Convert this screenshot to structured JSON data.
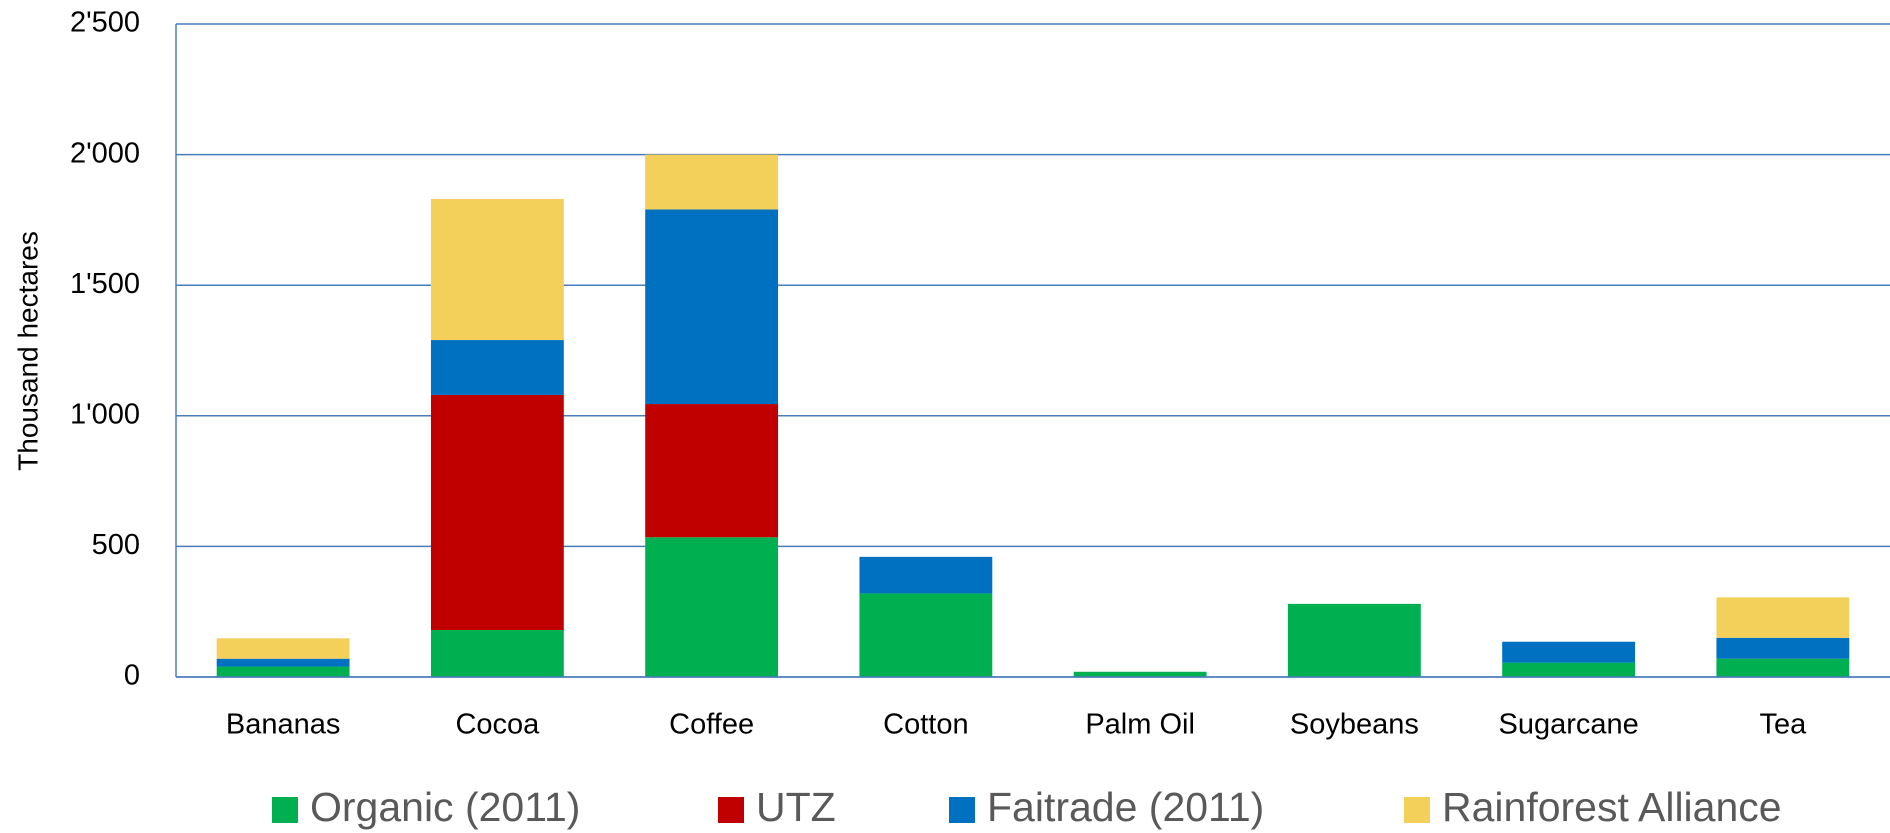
{
  "chart_data": {
    "type": "bar",
    "stacked": true,
    "ylabel": "Thousand hectares",
    "categories": [
      "Bananas",
      "Cocoa",
      "Coffee",
      "Cotton",
      "Palm Oil",
      "Soybeans",
      "Sugarcane",
      "Tea"
    ],
    "series": [
      {
        "name": "Organic (2011)",
        "color": "#00b050",
        "values": [
          40,
          180,
          535,
          320,
          20,
          280,
          55,
          70
        ]
      },
      {
        "name": "UTZ",
        "color": "#c00000",
        "values": [
          0,
          900,
          510,
          0,
          0,
          0,
          0,
          0
        ]
      },
      {
        "name": "Faitrade (2011)",
        "color": "#0070c0",
        "values": [
          30,
          210,
          745,
          140,
          0,
          0,
          80,
          80
        ]
      },
      {
        "name": "Rainforest Alliance",
        "color": "#f2d05a",
        "values": [
          78,
          540,
          210,
          0,
          0,
          0,
          0,
          155
        ]
      }
    ],
    "ylim": [
      0,
      2500
    ],
    "yticks": [
      0,
      500,
      {
        "value": 1000,
        "label": "1'000"
      },
      {
        "value": 1500,
        "label": "1'500"
      },
      {
        "value": 2000,
        "label": "2'000"
      },
      {
        "value": 2500,
        "label": "2'500"
      }
    ],
    "grid": true,
    "legend": "bottom"
  }
}
